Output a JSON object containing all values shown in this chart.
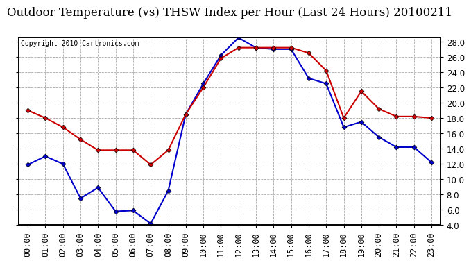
{
  "title": "Outdoor Temperature (vs) THSW Index per Hour (Last 24 Hours) 20100211",
  "copyright": "Copyright 2010 Cartronics.com",
  "hours": [
    "00:00",
    "01:00",
    "02:00",
    "03:00",
    "04:00",
    "05:00",
    "06:00",
    "07:00",
    "08:00",
    "09:00",
    "10:00",
    "11:00",
    "12:00",
    "13:00",
    "14:00",
    "15:00",
    "16:00",
    "17:00",
    "18:00",
    "19:00",
    "20:00",
    "21:00",
    "22:00",
    "23:00"
  ],
  "temp": [
    11.9,
    13.0,
    12.0,
    7.5,
    8.9,
    5.8,
    5.9,
    4.2,
    8.5,
    18.5,
    22.5,
    26.2,
    28.5,
    27.2,
    27.0,
    27.0,
    23.2,
    22.5,
    16.8,
    17.5,
    15.5,
    14.2,
    14.2,
    12.2
  ],
  "thsw": [
    19.0,
    18.0,
    16.8,
    15.2,
    13.8,
    13.8,
    13.8,
    11.9,
    13.8,
    18.5,
    22.0,
    25.8,
    27.2,
    27.2,
    27.2,
    27.2,
    26.5,
    24.2,
    18.0,
    21.5,
    19.2,
    18.2,
    18.2,
    18.0
  ],
  "temp_color": "#0000cc",
  "thsw_color": "#cc0000",
  "ylim": [
    4.0,
    28.5
  ],
  "yticks": [
    4.0,
    6.0,
    8.0,
    10.0,
    12.0,
    14.0,
    16.0,
    18.0,
    20.0,
    22.0,
    24.0,
    26.0,
    28.0
  ],
  "bg_color": "#ffffff",
  "grid_color": "#aaaaaa",
  "title_fontsize": 12,
  "copyright_fontsize": 7,
  "tick_fontsize": 8.5
}
